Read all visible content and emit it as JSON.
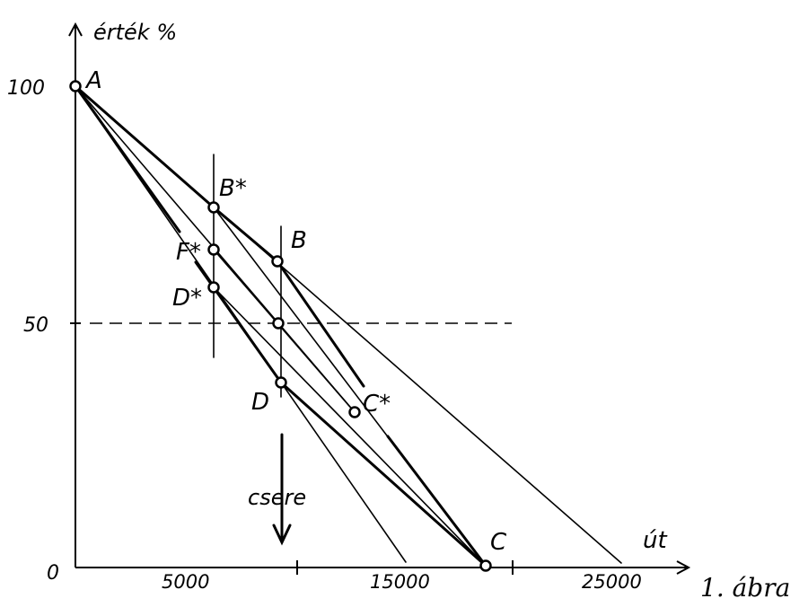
{
  "axes": {
    "y_label": "érték %",
    "x_label": "út",
    "y_ticks": [
      "100",
      "50",
      "0"
    ],
    "x_ticks": [
      "5000",
      "15000",
      "25000"
    ]
  },
  "points": {
    "A": "A",
    "B_star": "B*",
    "B": "B",
    "F_star": "F*",
    "D_star": "D*",
    "D": "D",
    "C_star": "C*",
    "C": "C"
  },
  "annotation": "csere",
  "caption": "1. ábra"
}
